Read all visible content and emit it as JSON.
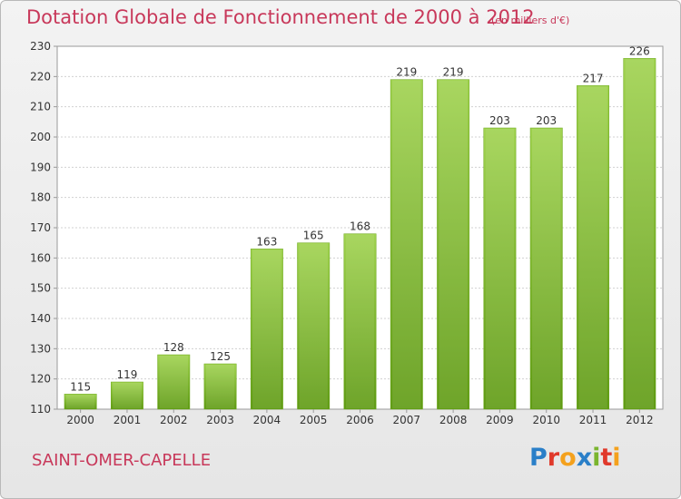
{
  "header": {
    "title": "Dotation Globale de Fonctionnement de 2000 à 2012",
    "unit": "(en milliers d'€)"
  },
  "footer": {
    "place": "SAINT-OMER-CAPELLE",
    "logo_letters": [
      "P",
      "r",
      "o",
      "x",
      "i",
      "t",
      "i"
    ],
    "logo_colors": [
      "#2a7fc8",
      "#e0392b",
      "#f4a11d",
      "#2a7fc8",
      "#7ab52e",
      "#e0392b",
      "#f4a11d"
    ]
  },
  "chart_data": {
    "type": "bar",
    "title": "Dotation Globale de Fonctionnement de 2000 à 2012",
    "subtitle": "(en milliers d'€)",
    "categories": [
      "2000",
      "2001",
      "2002",
      "2003",
      "2004",
      "2005",
      "2006",
      "2007",
      "2008",
      "2009",
      "2010",
      "2011",
      "2012"
    ],
    "values": [
      115,
      119,
      128,
      125,
      163,
      165,
      168,
      219,
      219,
      203,
      203,
      217,
      226
    ],
    "ylim": [
      110,
      230
    ],
    "yticks": [
      110,
      120,
      130,
      140,
      150,
      160,
      170,
      180,
      190,
      200,
      210,
      220,
      230
    ],
    "grid": true,
    "bar_color_top": "#9fd24e",
    "bar_color_bottom": "#5e9a12"
  }
}
